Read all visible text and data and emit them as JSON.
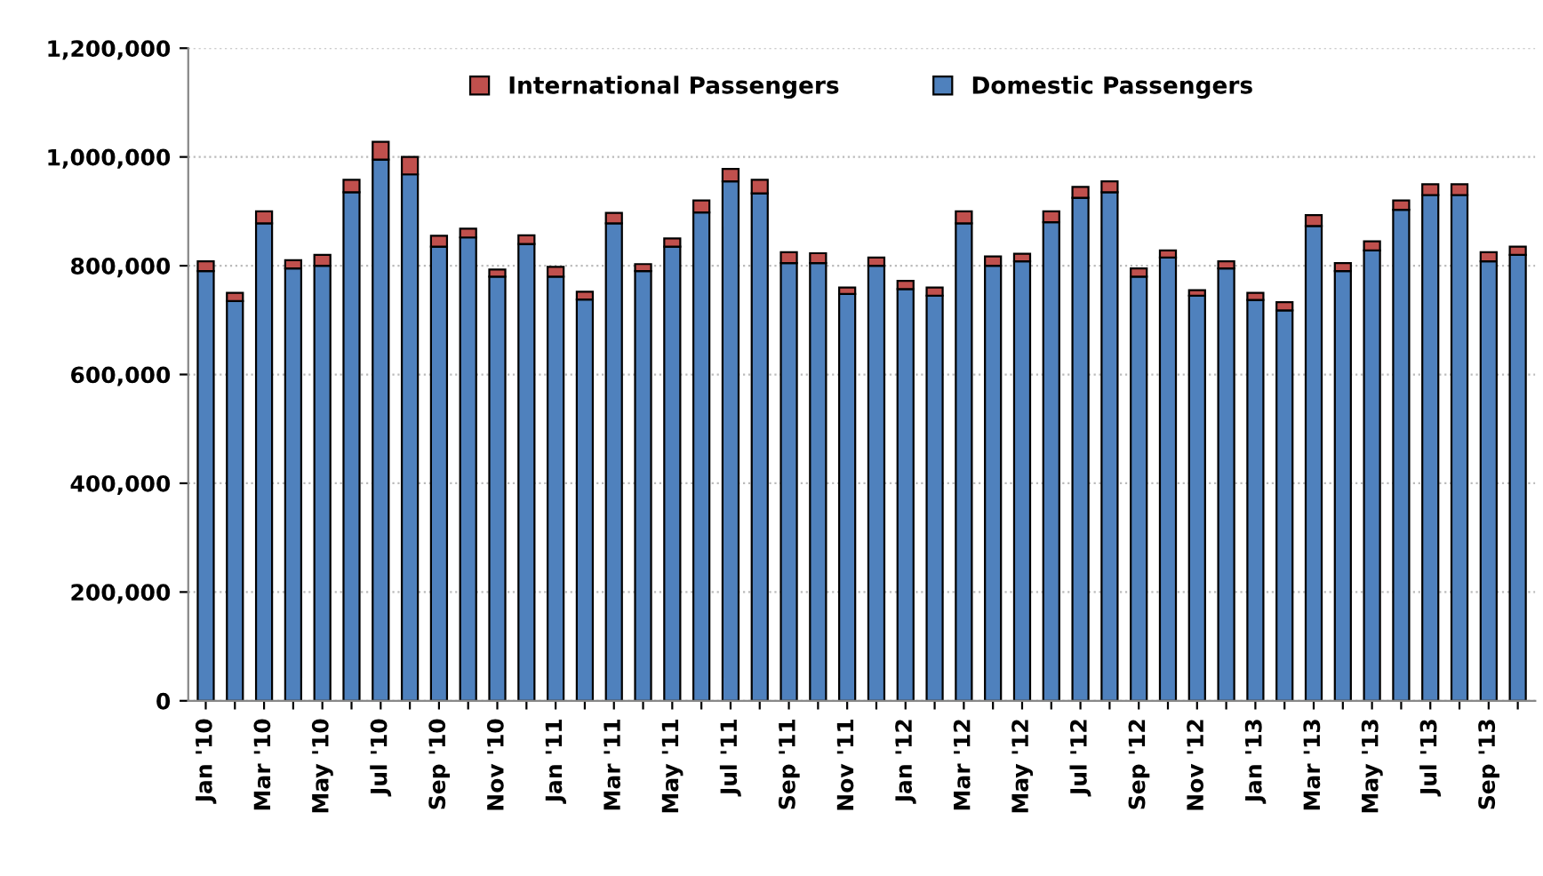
{
  "chart_data": {
    "type": "bar",
    "stacked": true,
    "categories": [
      "Jan '10",
      null,
      "Mar '10",
      null,
      "May '10",
      null,
      "Jul '10",
      null,
      "Sep '10",
      null,
      "Nov '10",
      null,
      "Jan '11",
      null,
      "Mar '11",
      null,
      "May '11",
      null,
      "Jul '11",
      null,
      "Sep '11",
      null,
      "Nov '11",
      null,
      "Jan '12",
      null,
      "Mar '12",
      null,
      "May '12",
      null,
      "Jul '12",
      null,
      "Sep '12",
      null,
      "Nov '12",
      null,
      "Jan '13",
      null,
      "Mar '13",
      null,
      "May '13",
      null,
      "Jul '13",
      null,
      "Sep '13",
      null
    ],
    "series": [
      {
        "name": "Domestic Passengers",
        "color": "#4f81bd",
        "values": [
          790000,
          735000,
          878000,
          795000,
          800000,
          935000,
          995000,
          968000,
          835000,
          852000,
          780000,
          840000,
          780000,
          738000,
          878000,
          790000,
          835000,
          898000,
          955000,
          933000,
          805000,
          805000,
          748000,
          800000,
          757000,
          745000,
          878000,
          800000,
          808000,
          880000,
          925000,
          935000,
          780000,
          815000,
          745000,
          795000,
          737000,
          718000,
          873000,
          790000,
          828000,
          903000,
          930000,
          930000,
          808000,
          820000
        ]
      },
      {
        "name": "International Passengers",
        "color": "#c0504d",
        "values": [
          18000,
          15000,
          22000,
          15000,
          20000,
          23000,
          33000,
          32000,
          20000,
          16000,
          13000,
          16000,
          18000,
          14000,
          19000,
          13000,
          15000,
          22000,
          23000,
          25000,
          20000,
          18000,
          12000,
          15000,
          15000,
          15000,
          22000,
          17000,
          14000,
          20000,
          20000,
          20000,
          15000,
          13000,
          10000,
          13000,
          13000,
          15000,
          20000,
          15000,
          17000,
          17000,
          20000,
          20000,
          17000,
          15000
        ]
      }
    ],
    "ylim": [
      0,
      1200000
    ],
    "yticks": [
      {
        "value": 0,
        "label": "0"
      },
      {
        "value": 200000,
        "label": "200,000"
      },
      {
        "value": 400000,
        "label": "400,000"
      },
      {
        "value": 600000,
        "label": "600,000"
      },
      {
        "value": 800000,
        "label": "800,000"
      },
      {
        "value": 1000000,
        "label": "1,000,000"
      },
      {
        "value": 1200000,
        "label": "1,200,000"
      }
    ],
    "grid": "y",
    "legend": "top"
  }
}
